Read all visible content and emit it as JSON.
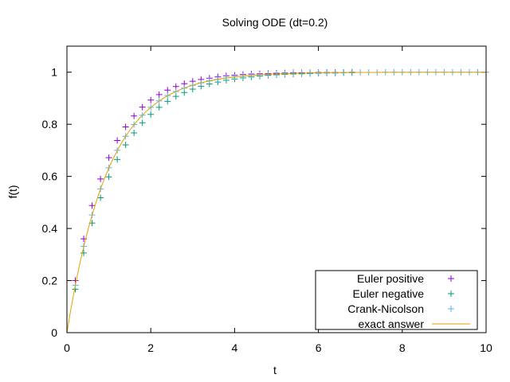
{
  "chart_data": {
    "type": "scatter",
    "title": "Solving ODE (dt=0.2)",
    "xlabel": "t",
    "ylabel": "f(t)",
    "xlim": [
      0,
      10
    ],
    "ylim": [
      0,
      1.1
    ],
    "xticks": [
      0,
      2,
      4,
      6,
      8,
      10
    ],
    "yticks": [
      0,
      0.2,
      0.4,
      0.6,
      0.8,
      1
    ],
    "grid": false,
    "legend_position": "bottom-right",
    "series": [
      {
        "name": "Euler positive",
        "style": "plus",
        "color": "#9400d3",
        "x": [
          0.2,
          0.4,
          0.6,
          0.8,
          1.0,
          1.2,
          1.4,
          1.6,
          1.8,
          2.0,
          2.2,
          2.4,
          2.6,
          2.8,
          3.0,
          3.2,
          3.4,
          3.6,
          3.8,
          4.0,
          4.2,
          4.4,
          4.6,
          4.8,
          5.0,
          5.2,
          5.4,
          5.6,
          5.8,
          6.0,
          6.2,
          6.4,
          6.6,
          6.8
        ],
        "y": [
          0.2,
          0.36,
          0.488,
          0.59,
          0.672,
          0.738,
          0.79,
          0.832,
          0.866,
          0.893,
          0.914,
          0.931,
          0.945,
          0.956,
          0.965,
          0.972,
          0.977,
          0.982,
          0.986,
          0.988,
          0.991,
          0.993,
          0.994,
          0.995,
          0.996,
          0.997,
          0.998,
          0.998,
          0.998,
          0.999,
          0.999,
          0.999,
          0.999,
          1.0
        ]
      },
      {
        "name": "Euler negative",
        "style": "plus",
        "color": "#009e73",
        "x": [
          0.2,
          0.4,
          0.6,
          0.8,
          1.0,
          1.2,
          1.4,
          1.6,
          1.8,
          2.0,
          2.2,
          2.4,
          2.6,
          2.8,
          3.0,
          3.2,
          3.4,
          3.6,
          3.8,
          4.0,
          4.2,
          4.4,
          4.6,
          4.8,
          5.0,
          5.2,
          5.4,
          5.6,
          5.8,
          6.0,
          6.2,
          6.4,
          6.6,
          6.8
        ],
        "y": [
          0.167,
          0.306,
          0.421,
          0.518,
          0.598,
          0.665,
          0.721,
          0.767,
          0.806,
          0.838,
          0.865,
          0.888,
          0.907,
          0.922,
          0.935,
          0.946,
          0.955,
          0.962,
          0.969,
          0.974,
          0.978,
          0.982,
          0.985,
          0.988,
          0.99,
          0.992,
          0.993,
          0.994,
          0.995,
          0.996,
          0.997,
          0.997,
          0.998,
          0.998
        ]
      },
      {
        "name": "Crank-Nicolson",
        "style": "plus",
        "color": "#56b4e9",
        "x": [
          0.2,
          0.4,
          0.6,
          0.8,
          1.0,
          1.2,
          1.4,
          1.6,
          1.8,
          2.0,
          2.2,
          2.4,
          2.6,
          2.8,
          3.0,
          3.2,
          3.4,
          3.6,
          3.8,
          4.0,
          4.2,
          4.4,
          4.6,
          4.8,
          5.0,
          5.2,
          5.4,
          5.6,
          5.8,
          6.0,
          6.2,
          6.4,
          6.6,
          6.8,
          7.0,
          7.2,
          7.4,
          7.6,
          7.8,
          8.0,
          8.2,
          8.4,
          8.6,
          8.8,
          9.0,
          9.2,
          9.4,
          9.6,
          9.8,
          10.0
        ],
        "y": [
          0.182,
          0.331,
          0.452,
          0.552,
          0.633,
          0.7,
          0.754,
          0.799,
          0.835,
          0.865,
          0.89,
          0.91,
          0.926,
          0.939,
          0.95,
          0.959,
          0.967,
          0.973,
          0.978,
          0.982,
          0.985,
          0.988,
          0.99,
          0.992,
          0.993,
          0.995,
          0.996,
          0.996,
          0.997,
          0.998,
          0.998,
          0.998,
          0.999,
          0.999,
          0.999,
          0.999,
          0.999,
          1.0,
          1.0,
          1.0,
          1.0,
          1.0,
          1.0,
          1.0,
          1.0,
          1.0,
          1.0,
          1.0,
          1.0,
          1.0
        ]
      },
      {
        "name": "exact answer",
        "style": "line",
        "color": "#e69f00",
        "formula": "1 - exp(-t)"
      }
    ]
  }
}
